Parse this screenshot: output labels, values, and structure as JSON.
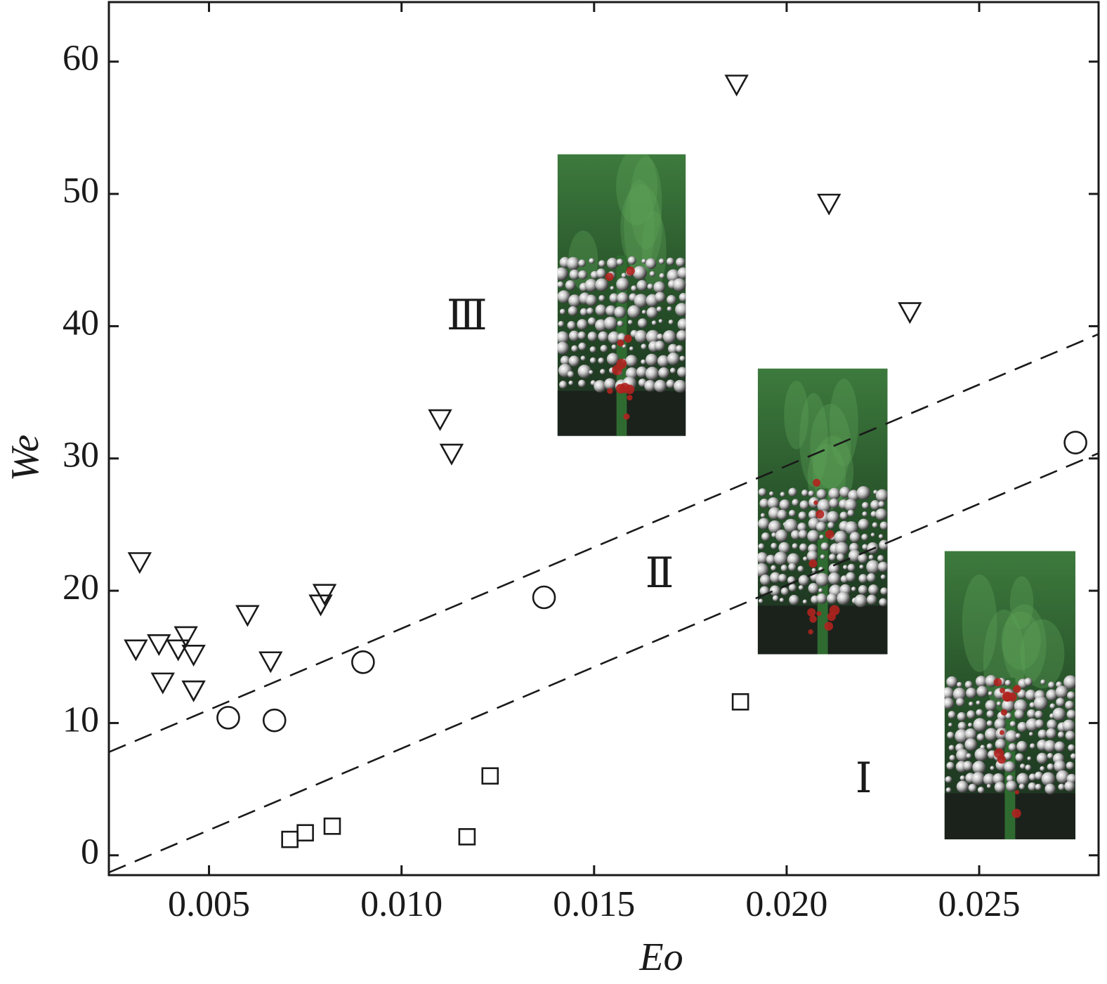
{
  "chart_data": {
    "type": "scatter",
    "xlabel": "Eo",
    "ylabel": "We",
    "xlim": [
      0.0024,
      0.0281
    ],
    "ylim": [
      -1.5,
      64.5
    ],
    "xticks": [
      {
        "value": 0.005,
        "label": "0.005"
      },
      {
        "value": 0.01,
        "label": "0.010"
      },
      {
        "value": 0.015,
        "label": "0.015"
      },
      {
        "value": 0.02,
        "label": "0.020"
      },
      {
        "value": 0.025,
        "label": "0.025"
      }
    ],
    "yticks": [
      {
        "value": 0,
        "label": "0"
      },
      {
        "value": 10,
        "label": "10"
      },
      {
        "value": 20,
        "label": "20"
      },
      {
        "value": 30,
        "label": "30"
      },
      {
        "value": 40,
        "label": "40"
      },
      {
        "value": 50,
        "label": "50"
      },
      {
        "value": 60,
        "label": "60"
      }
    ],
    "grid": false,
    "series": [
      {
        "marker": "triangle-down",
        "points": [
          [
            0.0032,
            22.2
          ],
          [
            0.0031,
            15.6
          ],
          [
            0.0037,
            16.0
          ],
          [
            0.0038,
            13.1
          ],
          [
            0.0042,
            15.6
          ],
          [
            0.0044,
            16.6
          ],
          [
            0.0046,
            15.2
          ],
          [
            0.0046,
            12.5
          ],
          [
            0.006,
            18.2
          ],
          [
            0.0066,
            14.7
          ],
          [
            0.0079,
            19.0
          ],
          [
            0.008,
            19.8
          ],
          [
            0.011,
            33.0
          ],
          [
            0.0113,
            30.4
          ],
          [
            0.0187,
            58.3
          ],
          [
            0.0211,
            49.3
          ],
          [
            0.0232,
            41.1
          ]
        ]
      },
      {
        "marker": "circle",
        "points": [
          [
            0.0055,
            10.4
          ],
          [
            0.0067,
            10.2
          ],
          [
            0.009,
            14.6
          ],
          [
            0.0137,
            19.5
          ],
          [
            0.0275,
            31.2
          ]
        ]
      },
      {
        "marker": "square",
        "points": [
          [
            0.0071,
            1.2
          ],
          [
            0.0075,
            1.7
          ],
          [
            0.0082,
            2.2
          ],
          [
            0.0117,
            1.4
          ],
          [
            0.0123,
            6.0
          ],
          [
            0.0188,
            11.6
          ]
        ]
      }
    ],
    "boundaries": [
      {
        "x": [
          0.0024,
          0.0281
        ],
        "y": [
          7.8,
          39.4
        ]
      },
      {
        "x": [
          0.0024,
          0.0281
        ],
        "y": [
          -1.3,
          30.4
        ]
      }
    ],
    "region_labels": [
      {
        "text": "Ⅲ",
        "x": 0.0117,
        "y": 40.5
      },
      {
        "text": "Ⅱ",
        "x": 0.0167,
        "y": 21.0
      },
      {
        "text": "Ⅰ",
        "x": 0.022,
        "y": 5.5
      }
    ],
    "insets": [
      {
        "name": "inset-regime-iii",
        "x0": 0.01405,
        "x1": 0.01738,
        "y0": 31.7,
        "y1": 53.0,
        "bed_top": 0.36,
        "bed_bottom": 0.84
      },
      {
        "name": "inset-regime-ii",
        "x0": 0.01925,
        "x1": 0.02262,
        "y0": 15.2,
        "y1": 36.8,
        "bed_top": 0.42,
        "bed_bottom": 0.83
      },
      {
        "name": "inset-regime-i",
        "x0": 0.0241,
        "x1": 0.0275,
        "y0": 1.2,
        "y1": 23.0,
        "bed_top": 0.44,
        "bed_bottom": 0.84
      }
    ]
  }
}
